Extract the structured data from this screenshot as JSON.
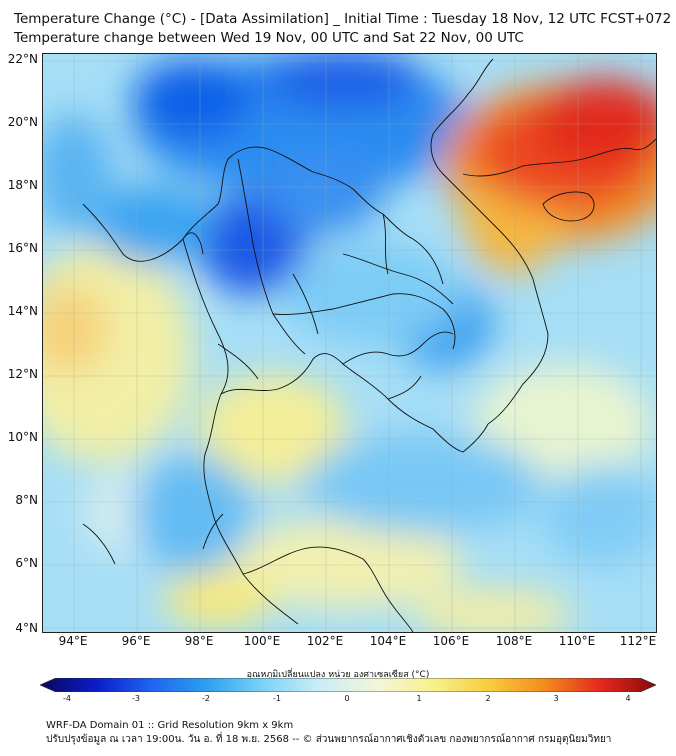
{
  "title": {
    "line1": "Temperature Change (°C) - [Data Assimilation] _ Initial Time : Tuesday 18 Nov, 12 UTC FCST+072",
    "line2": "Temperature change between Wed 19 Nov, 00 UTC and Sat 22 Nov, 00 UTC"
  },
  "lat_labels": [
    "22°N",
    "20°N",
    "18°N",
    "16°N",
    "14°N",
    "12°N",
    "10°N",
    "8°N",
    "6°N",
    "4°N"
  ],
  "lon_labels": [
    "94°E",
    "96°E",
    "98°E",
    "100°E",
    "102°E",
    "104°E",
    "106°E",
    "108°E",
    "110°E",
    "112°E"
  ],
  "colorbar": {
    "label": "อุณหภูมิเปลี่ยนแปลง หน่วย องศาเซลเซียส (°C)",
    "ticks": [
      "-4",
      "-3",
      "-2",
      "-1",
      "0",
      "1",
      "2",
      "3",
      "4"
    ],
    "colors": [
      "#08085a",
      "#0a1cc8",
      "#1e64f0",
      "#2aa0f0",
      "#7ad2f8",
      "#c8ecf8",
      "#f4f6d8",
      "#f8f08c",
      "#f8cc3c",
      "#f48a1e",
      "#e6281c",
      "#8a0a0a"
    ]
  },
  "footer": {
    "line1": "WRF-DA Domain 01 :: Grid Resolution 9km x 9km",
    "line2": "ปรับปรุงข้อมูล ณ เวลา 19:00น. วัน อ. ที่ 18 พ.ย. 2568 -- © ส่วนพยากรณ์อากาศเชิงตัวเลข กองพยากรณ์อากาศ กรมอุตุนิยมวิทยา"
  }
}
